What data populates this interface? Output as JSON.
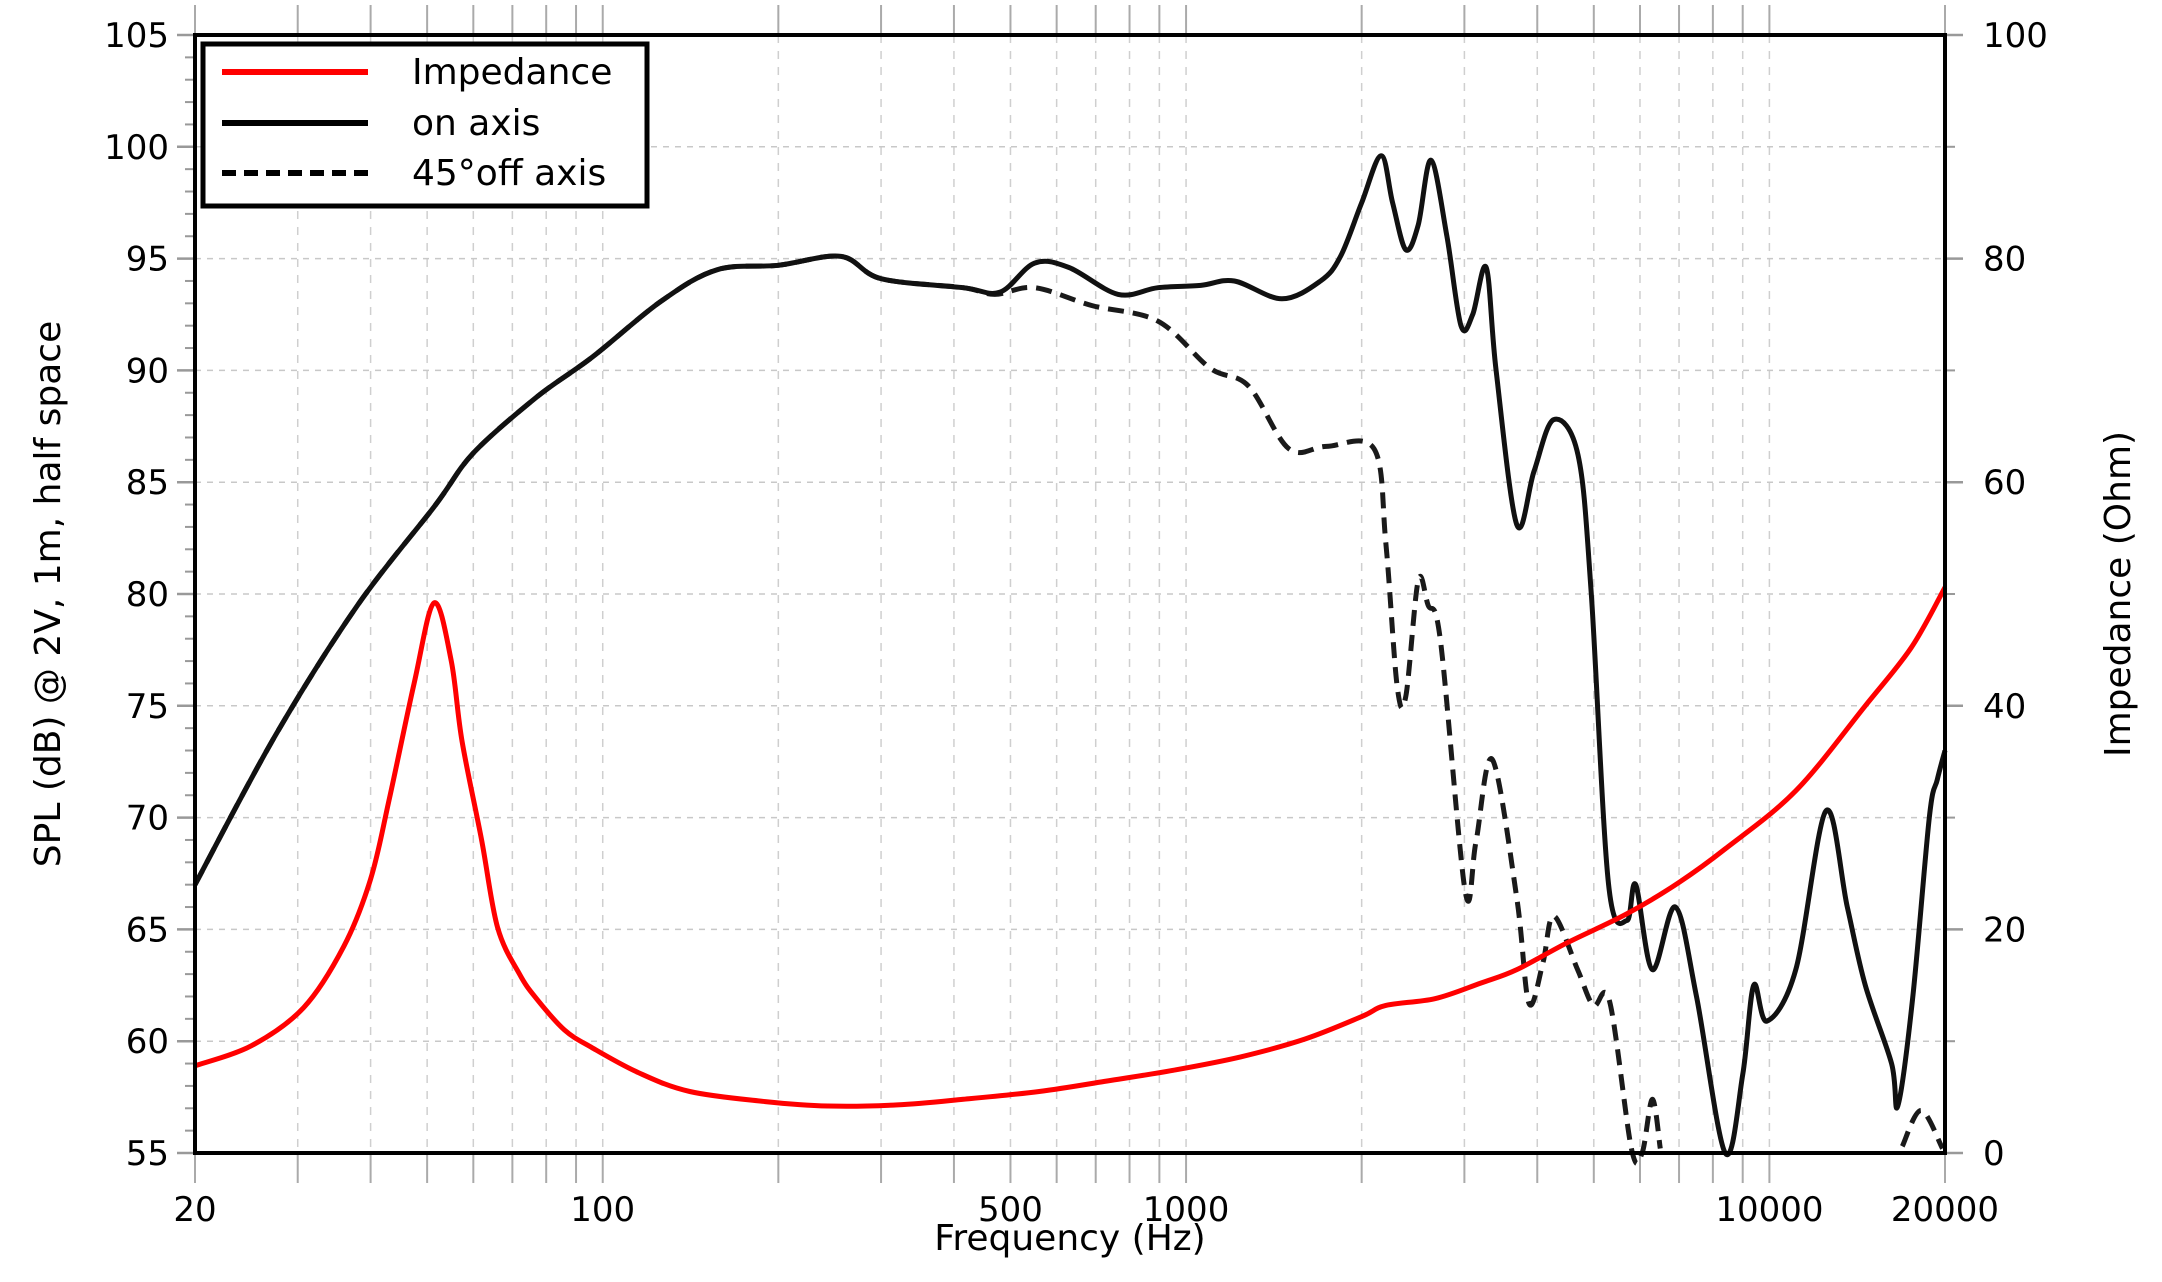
{
  "chart_data": {
    "type": "line",
    "title": "",
    "xlabel": "Frequency (Hz)",
    "ylabel": "SPL (dB) @ 2V, 1m, half space",
    "y2label": "Impedance (Ohm)",
    "xscale": "log",
    "xlim": [
      20,
      20000
    ],
    "ylim": [
      55,
      105
    ],
    "y2lim": [
      0,
      100
    ],
    "grid": true,
    "legend_position": "upper left",
    "x_ticks": [
      20,
      100,
      500,
      1000,
      10000,
      20000
    ],
    "x_tick_labels": [
      "20",
      "100",
      "500",
      "1000",
      "10000",
      "20000"
    ],
    "y_ticks": [
      55,
      60,
      65,
      70,
      75,
      80,
      85,
      90,
      95,
      100,
      105
    ],
    "y_tick_labels": [
      "55",
      "60",
      "65",
      "70",
      "75",
      "80",
      "85",
      "90",
      "95",
      "100",
      "105"
    ],
    "y2_ticks": [
      0,
      20,
      40,
      60,
      80,
      100
    ],
    "y2_tick_labels": [
      "0",
      "20",
      "40",
      "60",
      "80",
      "100"
    ],
    "series": [
      {
        "name": "Impedance",
        "axis": "right",
        "color": "#ff0000",
        "style": "solid",
        "x": [
          20,
          25,
          30.7,
          36,
          40,
          43,
          47.5,
          51.4,
          55,
          57.4,
          62,
          66,
          72,
          77,
          86,
          96,
          115,
          141,
          190,
          243,
          320,
          415,
          560,
          725,
          950,
          1240,
          1600,
          2000,
          2200,
          2670,
          3200,
          3690,
          4500,
          5700,
          7000,
          8400,
          11100,
          14600,
          17500,
          20000
        ],
        "values": [
          7.8,
          9.6,
          13.0,
          18.5,
          24.5,
          31.5,
          42.0,
          49.2,
          44.0,
          36.8,
          28.0,
          20.2,
          16.0,
          13.8,
          11.0,
          9.4,
          7.2,
          5.5,
          4.6,
          4.2,
          4.3,
          4.8,
          5.5,
          6.4,
          7.4,
          8.6,
          10.2,
          12.2,
          13.2,
          13.8,
          15.2,
          16.4,
          18.8,
          21.4,
          24.2,
          27.2,
          32.4,
          40.0,
          45.2,
          50.6
        ]
      },
      {
        "name": "on axis",
        "axis": "left",
        "color": "#000000",
        "style": "solid",
        "x": [
          20,
          27.5,
          38,
          51.4,
          60,
          77,
          96,
          126,
          157,
          200,
          256,
          300,
          415,
          480,
          550,
          630,
          765,
          895,
          1060,
          1210,
          1460,
          1700,
          1840,
          2000,
          2160,
          2260,
          2380,
          2500,
          2630,
          2800,
          2960,
          3100,
          3270,
          3400,
          3690,
          3950,
          4270,
          4700,
          4950,
          5300,
          5700,
          5900,
          6300,
          6900,
          7500,
          8400,
          9000,
          9400,
          9900,
          11100,
          12500,
          13600,
          14600,
          16200,
          16600,
          17600,
          18800,
          19400,
          20000
        ],
        "values": [
          67.0,
          73.7,
          79.5,
          83.9,
          86.3,
          88.8,
          90.6,
          93.1,
          94.5,
          94.7,
          95.1,
          94.1,
          93.7,
          93.5,
          94.8,
          94.6,
          93.4,
          93.7,
          93.8,
          94.0,
          93.2,
          94.0,
          95.1,
          97.5,
          99.6,
          97.5,
          95.4,
          96.5,
          99.4,
          96.0,
          92.0,
          92.5,
          94.6,
          90.0,
          83.1,
          85.5,
          87.8,
          86.2,
          80.0,
          67.0,
          65.4,
          67.0,
          63.2,
          66.0,
          62.0,
          55.0,
          58.5,
          62.5,
          60.9,
          63.2,
          70.3,
          66.0,
          62.5,
          59.0,
          57.1,
          61.9,
          70.0,
          71.7,
          73.0
        ]
      },
      {
        "name": "45°off axis",
        "axis": "left",
        "color": "#000000",
        "style": "dashed",
        "x": [
          20,
          27.5,
          38,
          51.4,
          60,
          77,
          96,
          126,
          157,
          200,
          256,
          300,
          415,
          470,
          550,
          690,
          895,
          1100,
          1280,
          1500,
          1740,
          2100,
          2200,
          2300,
          2380,
          2500,
          2600,
          2730,
          3010,
          3140,
          3350,
          3690,
          3870,
          4090,
          4270,
          4690,
          4990,
          5320,
          5800,
          6050,
          6300,
          6500,
          16900,
          18200,
          19800
        ],
        "values": [
          67.0,
          73.7,
          79.5,
          83.9,
          86.3,
          88.8,
          90.6,
          93.1,
          94.5,
          94.7,
          95.1,
          94.1,
          93.7,
          93.4,
          93.7,
          92.9,
          92.2,
          90.1,
          89.3,
          86.5,
          86.6,
          86.5,
          82.3,
          75.9,
          75.4,
          80.6,
          79.5,
          77.9,
          66.7,
          68.9,
          72.6,
          66.4,
          61.7,
          63.5,
          65.6,
          63.2,
          61.6,
          61.8,
          55.2,
          55.0,
          57.4,
          55.2,
          55.3,
          56.9,
          55.2
        ]
      }
    ]
  },
  "axes": {
    "xlabel": "Frequency (Hz)",
    "ylabel": "SPL (dB) @ 2V, 1m, half space",
    "y2label": "Impedance (Ohm)"
  },
  "legend": {
    "items": [
      {
        "label": "Impedance",
        "color": "#ff0000",
        "style": "solid"
      },
      {
        "label": "on axis",
        "color": "#000000",
        "style": "solid"
      },
      {
        "label": "45°off axis",
        "color": "#000000",
        "style": "dashed"
      }
    ]
  }
}
